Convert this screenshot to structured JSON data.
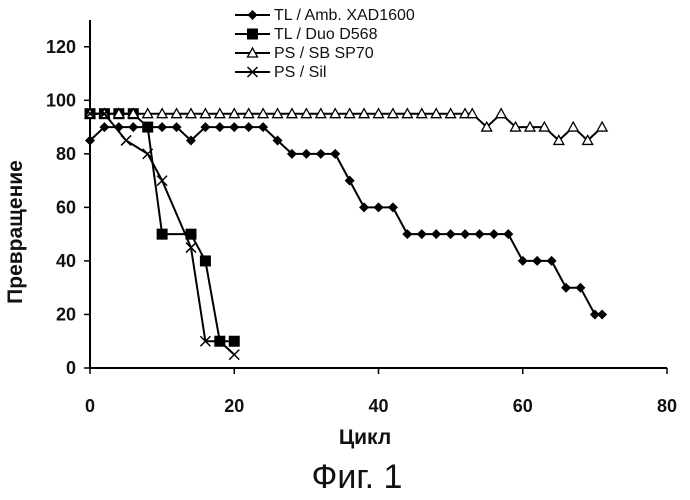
{
  "caption": "Фиг. 1",
  "chart_data": {
    "type": "line",
    "xlabel": "Цикл",
    "ylabel": "Превращение",
    "xlim": [
      0,
      80
    ],
    "ylim": [
      0,
      130
    ],
    "xticks": [
      0,
      20,
      40,
      60,
      80
    ],
    "yticks": [
      0,
      20,
      40,
      60,
      80,
      100,
      120
    ],
    "grid": false,
    "legend_position": "top-center",
    "series": [
      {
        "name": "TL / Amb. XAD1600",
        "marker": "diamond",
        "color": "#000000",
        "x": [
          0,
          2,
          4,
          6,
          8,
          10,
          12,
          14,
          16,
          18,
          20,
          22,
          24,
          26,
          28,
          30,
          32,
          34,
          36,
          38,
          40,
          42,
          44,
          46,
          48,
          50,
          52,
          54,
          56,
          58,
          60,
          62,
          64,
          66,
          68,
          70,
          71
        ],
        "y": [
          85,
          90,
          90,
          90,
          90,
          90,
          90,
          85,
          90,
          90,
          90,
          90,
          90,
          85,
          80,
          80,
          80,
          80,
          70,
          60,
          60,
          60,
          50,
          50,
          50,
          50,
          50,
          50,
          50,
          50,
          40,
          40,
          40,
          30,
          30,
          20,
          20
        ]
      },
      {
        "name": "TL / Duo D568",
        "marker": "square",
        "color": "#000000",
        "x": [
          0,
          2,
          4,
          6,
          8,
          10,
          14,
          16,
          18,
          20
        ],
        "y": [
          95,
          95,
          95,
          95,
          90,
          50,
          50,
          40,
          10,
          10
        ]
      },
      {
        "name": "PS / SB SP70",
        "marker": "triangle",
        "color": "#000000",
        "x": [
          0,
          2,
          4,
          6,
          8,
          10,
          12,
          14,
          16,
          18,
          20,
          22,
          24,
          26,
          28,
          30,
          32,
          34,
          36,
          38,
          40,
          42,
          44,
          46,
          48,
          50,
          52,
          53,
          55,
          57,
          59,
          61,
          63,
          65,
          67,
          69,
          71
        ],
        "y": [
          95,
          95,
          95,
          95,
          95,
          95,
          95,
          95,
          95,
          95,
          95,
          95,
          95,
          95,
          95,
          95,
          95,
          95,
          95,
          95,
          95,
          95,
          95,
          95,
          95,
          95,
          95,
          95,
          90,
          95,
          90,
          90,
          90,
          85,
          90,
          85,
          90
        ]
      },
      {
        "name": "PS / Sil",
        "marker": "x",
        "color": "#000000",
        "x": [
          0,
          2,
          5,
          8,
          10,
          14,
          16,
          18,
          20
        ],
        "y": [
          95,
          95,
          85,
          80,
          70,
          45,
          10,
          10,
          5
        ]
      }
    ]
  }
}
